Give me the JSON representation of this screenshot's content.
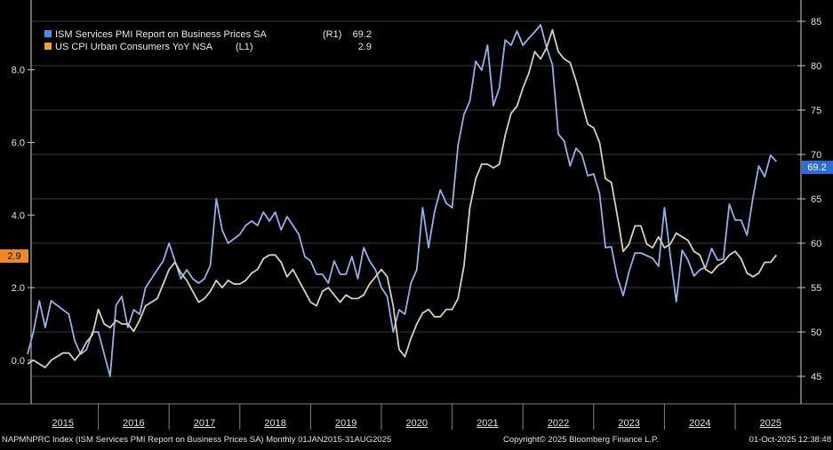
{
  "chart_data": {
    "type": "line",
    "title": "",
    "legend": {
      "placement": "top-left",
      "entries": [
        {
          "label": "ISM Services PMI Report on Business Prices SA",
          "axis": "(R1)",
          "last": "69.2",
          "color": "#4a90e8"
        },
        {
          "label": "US CPI Urban Consumers YoY NSA",
          "axis": "(L1)",
          "last": "2.9",
          "color": "#f0a030"
        }
      ]
    },
    "x_start": "2015-01",
    "x_end": "2025-08",
    "frequency": "monthly",
    "x_tick_labels": [
      "2015",
      "2016",
      "2017",
      "2018",
      "2019",
      "2020",
      "2021",
      "2022",
      "2023",
      "2024",
      "2025"
    ],
    "left_axis": {
      "range": [
        -1.2,
        9.8
      ],
      "ticks": [
        "0.0",
        "2.0",
        "4.0",
        "6.0",
        "8.0"
      ],
      "last_value_label": "2.9",
      "last_value_color": "#f08a20"
    },
    "right_axis": {
      "range": [
        41.9,
        86.9
      ],
      "ticks": [
        "45",
        "50",
        "55",
        "60",
        "65",
        "70",
        "75",
        "80",
        "85"
      ],
      "last_value_label": "69.2",
      "last_value_color": "#2a6fd8"
    },
    "grid": true,
    "series": [
      {
        "name": "ISM Services PMI Report on Business Prices SA",
        "axis": "right",
        "color": "#8fb0e8",
        "values": [
          47.5,
          50.0,
          53.5,
          50.5,
          53.5,
          53.0,
          52.5,
          52.0,
          49.0,
          47.5,
          48.0,
          50.0,
          50.0,
          47.5,
          45.0,
          53.0,
          54.0,
          50.5,
          52.5,
          52.0,
          55.0,
          56.0,
          57.0,
          58.0,
          60.0,
          58.0,
          56.0,
          57.0,
          56.0,
          55.5,
          56.0,
          57.5,
          65.0,
          61.5,
          60.0,
          60.5,
          61.0,
          62.0,
          62.5,
          62.0,
          63.5,
          62.5,
          63.5,
          61.5,
          63.0,
          62.0,
          61.0,
          58.5,
          58.0,
          56.5,
          56.5,
          55.5,
          58.0,
          56.5,
          56.5,
          58.5,
          56.0,
          59.5,
          58.0,
          57.0,
          55.0,
          54.0,
          50.0,
          52.5,
          52.0,
          55.5,
          57.0,
          64.0,
          59.5,
          63.5,
          66.0,
          64.5,
          64.0,
          71.0,
          74.5,
          76.0,
          80.5,
          79.5,
          82.3,
          75.5,
          77.5,
          82.9,
          82.3,
          83.9,
          82.3,
          83.1,
          83.8,
          84.6,
          82.1,
          80.1,
          72.3,
          71.5,
          68.7,
          70.7,
          70.0,
          67.6,
          67.8,
          65.6,
          59.5,
          59.6,
          56.2,
          54.1,
          56.8,
          58.9,
          58.9,
          58.6,
          58.3,
          57.4,
          64.0,
          58.6,
          53.4,
          59.2,
          58.1,
          56.3,
          57.0,
          57.3,
          59.4,
          58.1,
          58.2,
          64.4,
          62.6,
          62.6,
          60.9,
          65.1,
          68.7,
          67.5,
          69.9,
          69.2
        ]
      },
      {
        "name": "US CPI Urban Consumers YoY NSA",
        "axis": "left",
        "color": "#d8d0b0",
        "values": [
          -0.1,
          0.0,
          -0.1,
          -0.2,
          0.0,
          0.1,
          0.2,
          0.2,
          0.0,
          0.2,
          0.5,
          0.7,
          1.4,
          1.0,
          0.9,
          1.1,
          1.0,
          1.0,
          0.8,
          1.1,
          1.5,
          1.6,
          1.7,
          2.1,
          2.5,
          2.7,
          2.4,
          2.2,
          1.9,
          1.6,
          1.7,
          1.9,
          2.2,
          2.0,
          2.2,
          2.1,
          2.1,
          2.2,
          2.4,
          2.5,
          2.8,
          2.9,
          2.9,
          2.7,
          2.3,
          2.5,
          2.2,
          1.9,
          1.6,
          1.5,
          1.9,
          2.0,
          1.8,
          1.6,
          1.8,
          1.7,
          1.7,
          1.8,
          2.1,
          2.3,
          2.5,
          2.3,
          1.5,
          0.3,
          0.1,
          0.6,
          1.0,
          1.3,
          1.4,
          1.2,
          1.2,
          1.4,
          1.4,
          1.7,
          2.6,
          4.2,
          5.0,
          5.4,
          5.4,
          5.3,
          5.4,
          6.2,
          6.8,
          7.0,
          7.5,
          7.9,
          8.5,
          8.3,
          8.6,
          9.1,
          8.5,
          8.3,
          8.2,
          7.7,
          7.1,
          6.5,
          6.4,
          6.0,
          5.0,
          4.9,
          4.0,
          3.0,
          3.2,
          3.7,
          3.7,
          3.2,
          3.1,
          3.4,
          3.1,
          3.2,
          3.5,
          3.4,
          3.3,
          3.0,
          2.9,
          2.5,
          2.4,
          2.6,
          2.7,
          2.9,
          3.0,
          2.8,
          2.4,
          2.3,
          2.4,
          2.7,
          2.7,
          2.9
        ]
      }
    ]
  },
  "footer": {
    "source": "NAPMNPRC Index (ISM Services PMI Report on Business Prices SA) Monthly 01JAN2015-31AUG2025",
    "copyright": "Copyright© 2025 Bloomberg Finance L.P.",
    "timestamp": "01-Oct-2025 12:38:48"
  }
}
